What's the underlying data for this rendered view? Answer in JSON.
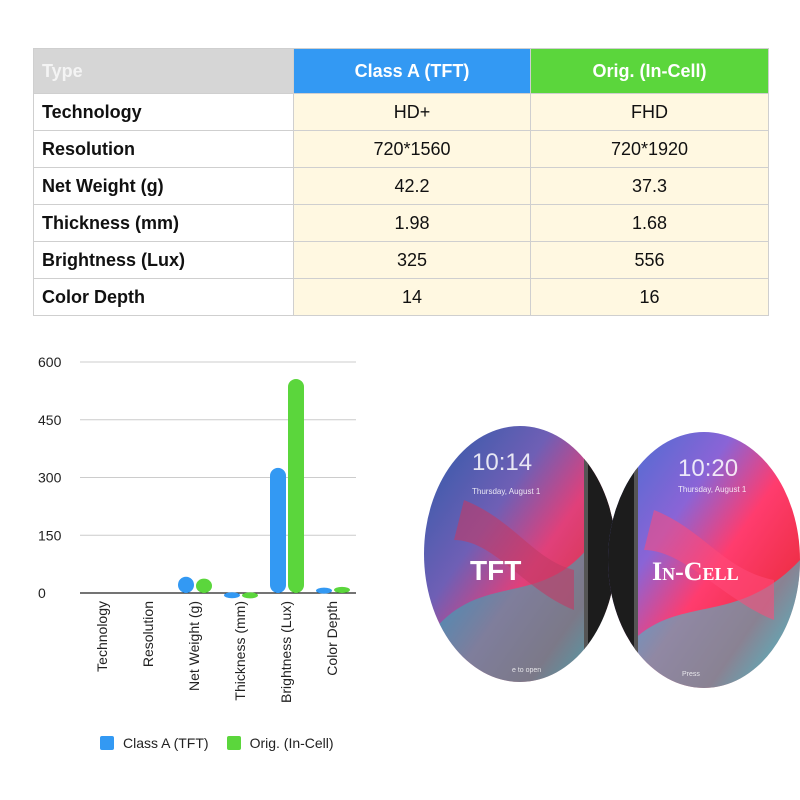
{
  "table": {
    "header": [
      "Type",
      "Class A (TFT)",
      "Orig. (In-Cell)"
    ],
    "rows": [
      [
        "Technology",
        "HD+",
        "FHD"
      ],
      [
        "Resolution",
        "720*1560",
        "720*1920"
      ],
      [
        "Net Weight (g)",
        "42.2",
        "37.3"
      ],
      [
        "Thickness (mm)",
        "1.98",
        "1.68"
      ],
      [
        "Brightness (Lux)",
        "325",
        "556"
      ],
      [
        "Color Depth",
        "14",
        "16"
      ]
    ]
  },
  "chart_data": {
    "type": "bar",
    "categories": [
      "Technology",
      "Resolution",
      "Net Weight (g)",
      "Thickness (mm)",
      "Brightness (Lux)",
      "Color Depth"
    ],
    "series": [
      {
        "name": "Class A (TFT)",
        "values": [
          0,
          0,
          42.2,
          1.98,
          325,
          14
        ],
        "color": "#3399f3"
      },
      {
        "name": "Orig. (In-Cell)",
        "values": [
          0,
          0,
          37.3,
          1.68,
          556,
          16
        ],
        "color": "#5bd63c"
      }
    ],
    "yticks": [
      0,
      150,
      300,
      450,
      600
    ],
    "ylim": [
      0,
      600
    ],
    "grid": true,
    "legend": "bottom"
  },
  "phones": {
    "left_time": "10:14",
    "left_date": "Thursday, August 1",
    "left_label": "TFT",
    "left_hint": "e to open",
    "right_time": "10:20",
    "right_date": "Thursday, August 1",
    "right_label": "In-Cell",
    "right_hint": "Press"
  },
  "colors": {
    "accent_blue": "#3399f3",
    "accent_green": "#5bd63c",
    "cell_bg": "#fff8e1"
  }
}
